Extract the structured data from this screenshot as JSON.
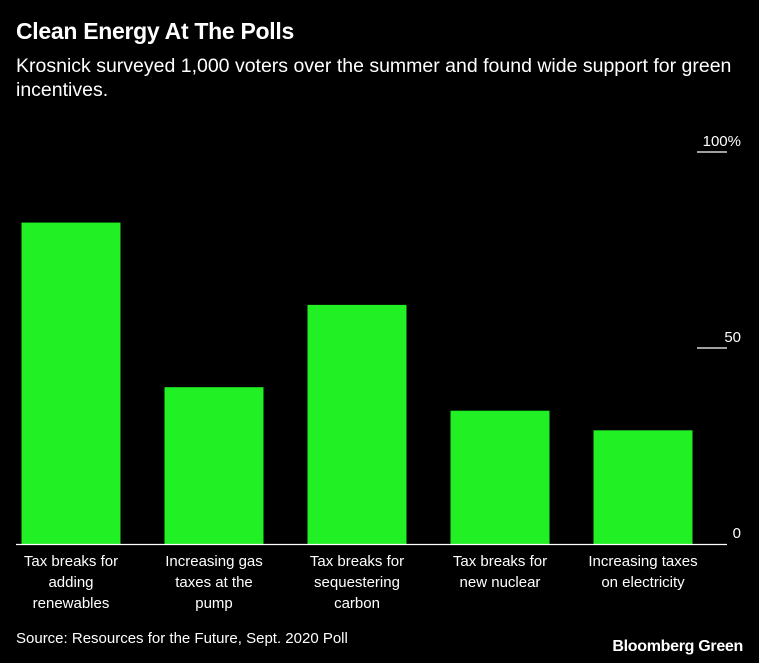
{
  "chart_data": {
    "type": "bar",
    "title": "Clean Energy At The Polls",
    "subtitle": "Krosnick surveyed 1,000 voters over the summer and found wide support for green incentives.",
    "categories": [
      [
        "Tax breaks for",
        "adding",
        "renewables"
      ],
      [
        "Increasing gas",
        "taxes at the",
        "pump"
      ],
      [
        "Tax breaks for",
        "sequestering",
        "carbon"
      ],
      [
        "Tax breaks for",
        "new nuclear"
      ],
      [
        "Increasing taxes",
        "on electricity"
      ]
    ],
    "values": [
      82,
      40,
      61,
      34,
      29
    ],
    "ylim": [
      0,
      100
    ],
    "yticks": [
      {
        "value": 100,
        "label": "100%"
      },
      {
        "value": 50,
        "label": "50"
      },
      {
        "value": 0,
        "label": "0"
      }
    ],
    "xlabel": "",
    "ylabel": "",
    "bar_color": "#21f025",
    "axis_color": "#ffffff"
  },
  "footer": {
    "source": "Source: Resources for the Future, Sept. 2020 Poll",
    "brand": "Bloomberg Green"
  }
}
